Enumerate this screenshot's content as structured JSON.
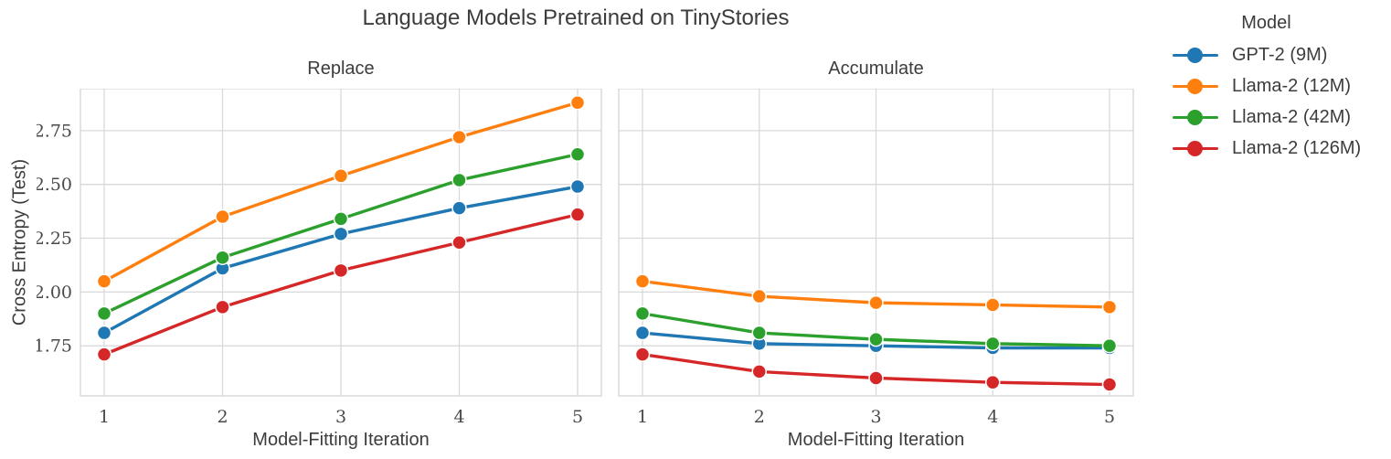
{
  "figure": {
    "title": "Language Models Pretrained on TinyStories",
    "ylabel": "Cross Entropy (Test)",
    "legend_title": "Model"
  },
  "chart_data": [
    {
      "type": "line",
      "title": "Replace",
      "xlabel": "Model-Fitting Iteration",
      "x": [
        1,
        2,
        3,
        4,
        5
      ],
      "ylim": [
        1.517,
        2.945
      ],
      "yticks": [
        "1.75",
        "2.00",
        "2.25",
        "2.50",
        "2.75"
      ],
      "show_ytick_labels": true,
      "grid": true,
      "legend_position": "outside-right",
      "series": [
        {
          "name": "GPT-2 (9M)",
          "color": "#1f77b4",
          "values": [
            1.81,
            2.11,
            2.27,
            2.39,
            2.49
          ]
        },
        {
          "name": "Llama-2 (12M)",
          "color": "#ff7f0e",
          "values": [
            2.05,
            2.35,
            2.54,
            2.72,
            2.88
          ]
        },
        {
          "name": "Llama-2 (42M)",
          "color": "#2ca02c",
          "values": [
            1.9,
            2.16,
            2.34,
            2.52,
            2.64
          ]
        },
        {
          "name": "Llama-2 (126M)",
          "color": "#d62728",
          "values": [
            1.71,
            1.93,
            2.1,
            2.23,
            2.36
          ]
        }
      ]
    },
    {
      "type": "line",
      "title": "Accumulate",
      "xlabel": "Model-Fitting Iteration",
      "x": [
        1,
        2,
        3,
        4,
        5
      ],
      "ylim": [
        1.517,
        2.945
      ],
      "yticks": [
        "1.75",
        "2.00",
        "2.25",
        "2.50",
        "2.75"
      ],
      "show_ytick_labels": false,
      "grid": true,
      "series": [
        {
          "name": "GPT-2 (9M)",
          "color": "#1f77b4",
          "values": [
            1.81,
            1.76,
            1.75,
            1.74,
            1.74
          ]
        },
        {
          "name": "Llama-2 (12M)",
          "color": "#ff7f0e",
          "values": [
            2.05,
            1.98,
            1.95,
            1.94,
            1.93
          ]
        },
        {
          "name": "Llama-2 (42M)",
          "color": "#2ca02c",
          "values": [
            1.9,
            1.81,
            1.78,
            1.76,
            1.75
          ]
        },
        {
          "name": "Llama-2 (126M)",
          "color": "#d62728",
          "values": [
            1.71,
            1.63,
            1.6,
            1.58,
            1.57
          ]
        }
      ]
    }
  ],
  "colors": {
    "grid": "#d9d9d9",
    "spine": "#d4d4d4",
    "tick_text": "#4a4a4a",
    "text": "#3c3c3c"
  }
}
